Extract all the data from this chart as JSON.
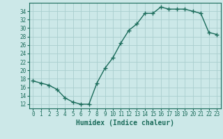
{
  "x": [
    0,
    1,
    2,
    3,
    4,
    5,
    6,
    7,
    8,
    9,
    10,
    11,
    12,
    13,
    14,
    15,
    16,
    17,
    18,
    19,
    20,
    21,
    22,
    23
  ],
  "y": [
    17.5,
    17.0,
    16.5,
    15.5,
    13.5,
    12.5,
    12.0,
    12.0,
    17.0,
    20.5,
    23.0,
    26.5,
    29.5,
    31.0,
    33.5,
    33.5,
    35.0,
    34.5,
    34.5,
    34.5,
    34.0,
    33.5,
    29.0,
    28.5
  ],
  "line_color": "#1a6b5a",
  "marker": "+",
  "markersize": 4,
  "linewidth": 1.0,
  "bg_color": "#cce8e8",
  "grid_color": "#aacece",
  "tick_color": "#1a6b5a",
  "xlabel": "Humidex (Indice chaleur)",
  "xlabel_fontsize": 7,
  "ylabel_ticks": [
    12,
    14,
    16,
    18,
    20,
    22,
    24,
    26,
    28,
    30,
    32,
    34
  ],
  "ylim": [
    11,
    36
  ],
  "xlim": [
    -0.5,
    23.5
  ],
  "xticks": [
    0,
    1,
    2,
    3,
    4,
    5,
    6,
    7,
    8,
    9,
    10,
    11,
    12,
    13,
    14,
    15,
    16,
    17,
    18,
    19,
    20,
    21,
    22,
    23
  ],
  "tick_fontsize": 5.5
}
